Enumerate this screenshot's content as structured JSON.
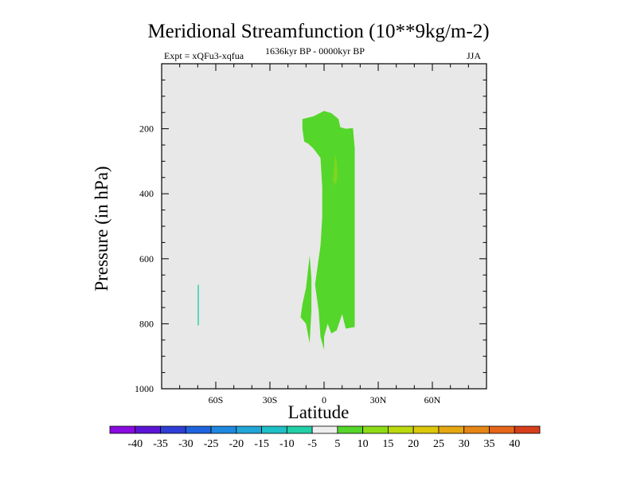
{
  "chart_data": {
    "type": "contour",
    "title": "Meridional Streamfunction (10**9kg/m-2)",
    "subtitle_left": "Expt = xQFu3-xqfua",
    "subtitle_center": "1636kyr BP - 0000kyr BP",
    "subtitle_right": "JJA",
    "xlabel": "Latitude",
    "ylabel": "Pressure (in hPa)",
    "xlim": [
      -90,
      90
    ],
    "ylim": [
      1000,
      0
    ],
    "x_ticks": [
      {
        "value": -60,
        "label": "60S"
      },
      {
        "value": -30,
        "label": "30S"
      },
      {
        "value": 0,
        "label": "0"
      },
      {
        "value": 30,
        "label": "30N"
      },
      {
        "value": 60,
        "label": "60N"
      }
    ],
    "y_ticks": [
      {
        "value": 200,
        "label": "200"
      },
      {
        "value": 400,
        "label": "400"
      },
      {
        "value": 600,
        "label": "600"
      },
      {
        "value": 800,
        "label": "800"
      },
      {
        "value": 1000,
        "label": "1000"
      }
    ],
    "colorbar": {
      "labels": [
        "-40",
        "-35",
        "-30",
        "-25",
        "-20",
        "-15",
        "-10",
        "-5",
        "5",
        "10",
        "15",
        "20",
        "25",
        "30",
        "35",
        "40"
      ],
      "colors": [
        "#8a0be0",
        "#5c14d6",
        "#2e3ed6",
        "#1f63de",
        "#1f88e0",
        "#22a6d8",
        "#1fc0c8",
        "#22d0a8",
        "#eeeeee",
        "#55d62a",
        "#8edc16",
        "#bcd80e",
        "#dcc80a",
        "#e6a812",
        "#e68614",
        "#e6661a",
        "#d63e1c"
      ]
    },
    "regions": [
      {
        "level": "5 to 10",
        "color": "#55d62a",
        "points": [
          [
            -12,
            170
          ],
          [
            -6,
            162
          ],
          [
            0,
            145
          ],
          [
            4,
            152
          ],
          [
            8,
            170
          ],
          [
            9,
            195
          ],
          [
            12,
            200
          ],
          [
            16,
            198
          ],
          [
            17,
            260
          ],
          [
            17,
            500
          ],
          [
            17,
            650
          ],
          [
            17,
            760
          ],
          [
            17,
            810
          ],
          [
            12,
            815
          ],
          [
            10,
            770
          ],
          [
            7,
            820
          ],
          [
            4,
            830
          ],
          [
            2,
            800
          ],
          [
            0,
            840
          ],
          [
            0,
            880
          ],
          [
            -2,
            840
          ],
          [
            -3,
            760
          ],
          [
            -5,
            680
          ],
          [
            -4,
            640
          ],
          [
            -2,
            560
          ],
          [
            -1,
            470
          ],
          [
            -1,
            380
          ],
          [
            -2,
            290
          ],
          [
            -6,
            260
          ],
          [
            -9,
            245
          ],
          [
            -11,
            240
          ],
          [
            -12,
            200
          ]
        ]
      },
      {
        "level": "10 to 15",
        "color": "#7ed620",
        "points": [
          [
            6,
            280
          ],
          [
            7,
            300
          ],
          [
            7.5,
            340
          ],
          [
            6.5,
            375
          ],
          [
            5,
            360
          ],
          [
            5.5,
            320
          ]
        ]
      },
      {
        "level": "5 to 10",
        "color": "#55d62a",
        "points": [
          [
            -8,
            590
          ],
          [
            -7,
            660
          ],
          [
            -7,
            760
          ],
          [
            -8,
            860
          ],
          [
            -10,
            800
          ],
          [
            -13,
            780
          ],
          [
            -12,
            740
          ],
          [
            -10,
            690
          ]
        ]
      },
      {
        "level": "-10 to -5",
        "color": "#22d0a8",
        "points": [
          [
            -70,
            680
          ],
          [
            -69.4,
            680
          ],
          [
            -69.4,
            805
          ],
          [
            -70,
            805
          ]
        ]
      }
    ]
  }
}
